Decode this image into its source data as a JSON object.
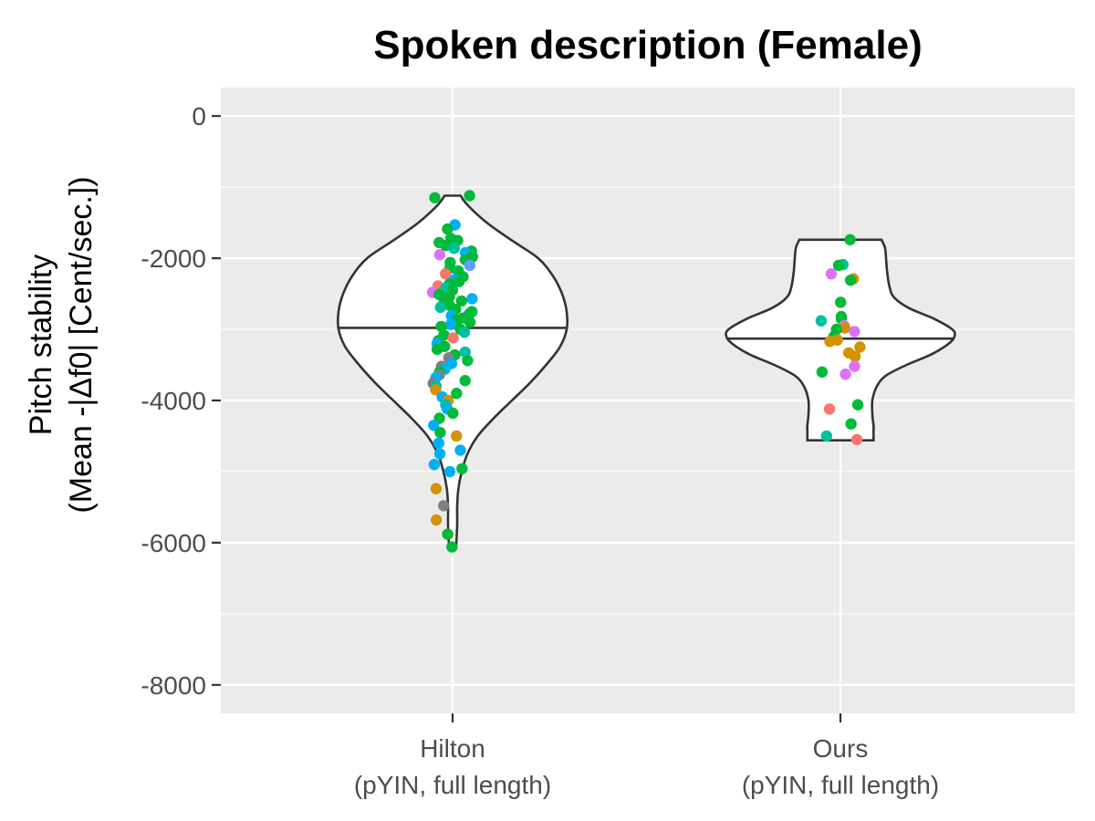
{
  "chart_data": {
    "type": "violin",
    "title": "Spoken description (Female)",
    "ylabel_lines": [
      "Pitch stability",
      "(Mean -|Δf0| [Cent/sec.])"
    ],
    "categories": [
      {
        "line1": "Hilton",
        "line2": "(pYIN, full length)"
      },
      {
        "line1": "Ours",
        "line2": "(pYIN, full length)"
      }
    ],
    "ylim": [
      -8400,
      400
    ],
    "yticks": [
      0,
      -2000,
      -4000,
      -6000,
      -8000
    ],
    "ytick_labels": [
      "0",
      "-2000",
      "-4000",
      "-6000",
      "-8000"
    ],
    "grid": true,
    "legend": "none",
    "colors": {
      "panel": "#ebebeb",
      "grid": "#ffffff",
      "violin_stroke": "#333333",
      "violin_fill": "#ffffff",
      "groups": [
        "#f8766d",
        "#d39200",
        "#00ba38",
        "#00c19f",
        "#619cff",
        "#db72fb",
        "#808080",
        "#00b0f6"
      ]
    },
    "violins": [
      {
        "category": "Hilton",
        "median": -2980,
        "max": -1120,
        "min": -6080,
        "profile": [
          [
            -1120,
            0.07
          ],
          [
            -1250,
            0.13
          ],
          [
            -1500,
            0.3
          ],
          [
            -1750,
            0.52
          ],
          [
            -2000,
            0.75
          ],
          [
            -2250,
            0.88
          ],
          [
            -2500,
            0.96
          ],
          [
            -2750,
            1.0
          ],
          [
            -3000,
            1.0
          ],
          [
            -3250,
            0.94
          ],
          [
            -3500,
            0.82
          ],
          [
            -3750,
            0.68
          ],
          [
            -4000,
            0.52
          ],
          [
            -4250,
            0.36
          ],
          [
            -4500,
            0.22
          ],
          [
            -4750,
            0.13
          ],
          [
            -5000,
            0.08
          ],
          [
            -5250,
            0.05
          ],
          [
            -5500,
            0.04
          ],
          [
            -5750,
            0.04
          ],
          [
            -6080,
            0.03
          ]
        ],
        "points": [
          {
            "y": -1120,
            "g": 2
          },
          {
            "y": -1150,
            "g": 2
          },
          {
            "y": -1530,
            "g": 7
          },
          {
            "y": -1590,
            "g": 2
          },
          {
            "y": -1720,
            "g": 2
          },
          {
            "y": -1750,
            "g": 2
          },
          {
            "y": -1780,
            "g": 2
          },
          {
            "y": -1820,
            "g": 2
          },
          {
            "y": -1860,
            "g": 3
          },
          {
            "y": -1900,
            "g": 2
          },
          {
            "y": -1920,
            "g": 7
          },
          {
            "y": -1950,
            "g": 5
          },
          {
            "y": -1980,
            "g": 2
          },
          {
            "y": -2020,
            "g": 2
          },
          {
            "y": -2060,
            "g": 2
          },
          {
            "y": -2100,
            "g": 4
          },
          {
            "y": -2140,
            "g": 2
          },
          {
            "y": -2180,
            "g": 2
          },
          {
            "y": -2220,
            "g": 0
          },
          {
            "y": -2260,
            "g": 2
          },
          {
            "y": -2300,
            "g": 7
          },
          {
            "y": -2330,
            "g": 2
          },
          {
            "y": -2360,
            "g": 2
          },
          {
            "y": -2390,
            "g": 0
          },
          {
            "y": -2420,
            "g": 3
          },
          {
            "y": -2450,
            "g": 2
          },
          {
            "y": -2480,
            "g": 5
          },
          {
            "y": -2510,
            "g": 2
          },
          {
            "y": -2540,
            "g": 2
          },
          {
            "y": -2570,
            "g": 7
          },
          {
            "y": -2600,
            "g": 2
          },
          {
            "y": -2630,
            "g": 2
          },
          {
            "y": -2660,
            "g": 2
          },
          {
            "y": -2690,
            "g": 3
          },
          {
            "y": -2720,
            "g": 2
          },
          {
            "y": -2750,
            "g": 2
          },
          {
            "y": -2780,
            "g": 2
          },
          {
            "y": -2810,
            "g": 7
          },
          {
            "y": -2840,
            "g": 2
          },
          {
            "y": -2870,
            "g": 2
          },
          {
            "y": -2900,
            "g": 2
          },
          {
            "y": -2930,
            "g": 7
          },
          {
            "y": -2960,
            "g": 2
          },
          {
            "y": -3000,
            "g": 2
          },
          {
            "y": -3040,
            "g": 3
          },
          {
            "y": -3080,
            "g": 2
          },
          {
            "y": -3120,
            "g": 0
          },
          {
            "y": -3160,
            "g": 2
          },
          {
            "y": -3200,
            "g": 7
          },
          {
            "y": -3240,
            "g": 2
          },
          {
            "y": -3280,
            "g": 2
          },
          {
            "y": -3320,
            "g": 3
          },
          {
            "y": -3360,
            "g": 2
          },
          {
            "y": -3400,
            "g": 6
          },
          {
            "y": -3440,
            "g": 2
          },
          {
            "y": -3480,
            "g": 7
          },
          {
            "y": -3520,
            "g": 6
          },
          {
            "y": -3560,
            "g": 7
          },
          {
            "y": -3600,
            "g": 2
          },
          {
            "y": -3640,
            "g": 6
          },
          {
            "y": -3680,
            "g": 7
          },
          {
            "y": -3720,
            "g": 2
          },
          {
            "y": -3760,
            "g": 6
          },
          {
            "y": -3800,
            "g": 3
          },
          {
            "y": -3850,
            "g": 1
          },
          {
            "y": -3900,
            "g": 2
          },
          {
            "y": -3950,
            "g": 7
          },
          {
            "y": -4000,
            "g": 1
          },
          {
            "y": -4060,
            "g": 3
          },
          {
            "y": -4120,
            "g": 7
          },
          {
            "y": -4180,
            "g": 2
          },
          {
            "y": -4250,
            "g": 2
          },
          {
            "y": -4350,
            "g": 7
          },
          {
            "y": -4450,
            "g": 2
          },
          {
            "y": -4500,
            "g": 1
          },
          {
            "y": -4600,
            "g": 7
          },
          {
            "y": -4700,
            "g": 7
          },
          {
            "y": -4750,
            "g": 7
          },
          {
            "y": -4900,
            "g": 7
          },
          {
            "y": -4960,
            "g": 2
          },
          {
            "y": -5000,
            "g": 7
          },
          {
            "y": -5240,
            "g": 1
          },
          {
            "y": -5480,
            "g": 6
          },
          {
            "y": -5680,
            "g": 1
          },
          {
            "y": -5880,
            "g": 2
          },
          {
            "y": -6060,
            "g": 2
          }
        ]
      },
      {
        "category": "Ours",
        "median": -3130,
        "max": -1740,
        "min": -4560,
        "profile": [
          [
            -1740,
            0.36
          ],
          [
            -1850,
            0.39
          ],
          [
            -2000,
            0.4
          ],
          [
            -2200,
            0.41
          ],
          [
            -2400,
            0.43
          ],
          [
            -2550,
            0.47
          ],
          [
            -2700,
            0.6
          ],
          [
            -2850,
            0.82
          ],
          [
            -3000,
            0.98
          ],
          [
            -3100,
            1.0
          ],
          [
            -3200,
            0.95
          ],
          [
            -3350,
            0.8
          ],
          [
            -3500,
            0.58
          ],
          [
            -3650,
            0.4
          ],
          [
            -3800,
            0.32
          ],
          [
            -4000,
            0.28
          ],
          [
            -4200,
            0.28
          ],
          [
            -4350,
            0.29
          ],
          [
            -4450,
            0.29
          ],
          [
            -4560,
            0.29
          ]
        ],
        "points": [
          {
            "y": -1740,
            "g": 2
          },
          {
            "y": -2090,
            "g": 3
          },
          {
            "y": -2100,
            "g": 2
          },
          {
            "y": -2220,
            "g": 5
          },
          {
            "y": -2290,
            "g": 1
          },
          {
            "y": -2310,
            "g": 2
          },
          {
            "y": -2620,
            "g": 2
          },
          {
            "y": -2820,
            "g": 2
          },
          {
            "y": -2850,
            "g": 2
          },
          {
            "y": -2880,
            "g": 3
          },
          {
            "y": -2950,
            "g": 5
          },
          {
            "y": -2980,
            "g": 1
          },
          {
            "y": -3000,
            "g": 2
          },
          {
            "y": -3030,
            "g": 5
          },
          {
            "y": -3100,
            "g": 2
          },
          {
            "y": -3150,
            "g": 1
          },
          {
            "y": -3170,
            "g": 1
          },
          {
            "y": -3250,
            "g": 1
          },
          {
            "y": -3330,
            "g": 1
          },
          {
            "y": -3380,
            "g": 1
          },
          {
            "y": -3520,
            "g": 5
          },
          {
            "y": -3600,
            "g": 2
          },
          {
            "y": -3630,
            "g": 5
          },
          {
            "y": -4060,
            "g": 2
          },
          {
            "y": -4120,
            "g": 0
          },
          {
            "y": -4330,
            "g": 2
          },
          {
            "y": -4500,
            "g": 3
          },
          {
            "y": -4550,
            "g": 0
          }
        ]
      }
    ]
  }
}
